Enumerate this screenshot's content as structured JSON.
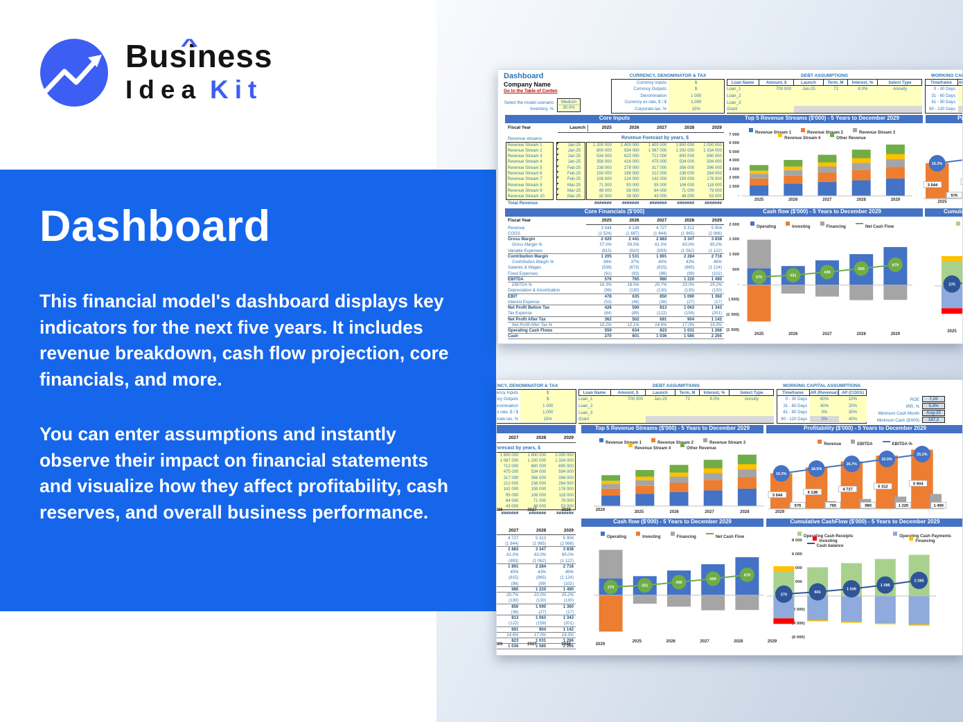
{
  "colors": {
    "accent_blue": "#1566EB",
    "logo_blue": "#3D5EF3",
    "header_bar": "#4472C4",
    "sheet_text": "#2E75B6",
    "sheet_bold": "#1F4E79",
    "link_red": "#C00000",
    "input_yellow": "#FFFFBE",
    "disabled_gray": "#D9D9D9",
    "kpi_box": "#D6DCE4",
    "series_blue": "#4472C4",
    "series_orange": "#ED7D31",
    "series_gray": "#A5A5A5",
    "series_yellow": "#FFC000",
    "series_green": "#70AD47",
    "light_green": "#A9D18E",
    "light_blue": "#8FAADC",
    "red": "#FF0000",
    "navy": "#2F5597"
  },
  "logo": {
    "part1": "Bus",
    "parti": "i",
    "part3": "ness",
    "caret": "^",
    "line2_black": "Idea",
    "line2_blue": "Kit"
  },
  "intro": {
    "title": "Dashboard",
    "para1": "This financial model's dashboard displays key indicators for the next five years. It includes revenue breakdown, cash flow projection, core financials, and more.",
    "para2": "You can enter assumptions and instantly observe their impact on financial statements and visualize how they affect profitability, cash reserves, and overall business performance."
  },
  "sheet": {
    "title": "Dashboard",
    "company": "Company Name",
    "toc": "Go to the Table of Conten",
    "scenario": {
      "label": "Select the model scenario",
      "value": "Medium",
      "inv_label": "Inventory, %",
      "inv_value": "30.0%"
    },
    "currency": {
      "title": "CURRENCY, DENOMINATOR & TAX",
      "rows": [
        [
          "Currency Inputs",
          "$"
        ],
        [
          "Currency Outputs",
          "$"
        ],
        [
          "Denomination",
          "1 000"
        ],
        [
          "Currency ex rate, $ / $",
          "1,000"
        ],
        [
          "Corporate tax, %",
          "15%"
        ]
      ]
    },
    "debt": {
      "title": "DEBT ASSUMPTIONS",
      "headers": [
        "Loan Name",
        "Amount, $",
        "Launch",
        "Term, M",
        "Interest, %",
        "Select Type"
      ],
      "rows": [
        [
          "Loan_1",
          "700 000",
          "Jan-25",
          "72",
          "8.0%",
          "Annuity"
        ],
        [
          "Loan_2",
          "",
          "",
          "",
          "",
          ""
        ],
        [
          "Loan_3",
          "",
          "",
          "",
          "",
          ""
        ],
        [
          "Grant",
          "",
          "",
          "",
          "",
          ""
        ]
      ]
    },
    "wc": {
      "title": "WORKING CAPITAL ASSUMPTIONS",
      "headers": [
        "Timeframe",
        "AR (Revenue)",
        "AP (COGS)"
      ],
      "rows": [
        [
          "0 - 30 Days",
          "60%",
          "10%"
        ],
        [
          "31 - 60 Days",
          "40%",
          "20%"
        ],
        [
          "61 - 90 Days",
          "0%",
          "30%"
        ],
        [
          "90 - 120 Days",
          "0%",
          "40%"
        ]
      ]
    },
    "kpis": [
      [
        "ROE",
        "7,20"
      ],
      [
        "IRR, %",
        "5,4%"
      ],
      [
        "Minimum Cash Month",
        "Aug-25"
      ],
      [
        "Minimum Cash ($'000)",
        "187,2"
      ]
    ],
    "core_inputs": {
      "header": "Core Inputs",
      "fiscal": "Fiscal Year",
      "launch": "Launch",
      "years": [
        "2025",
        "2026",
        "2027",
        "2028",
        "2029"
      ],
      "streams": "Revenue streams",
      "forecast": "Revenue Forecast by years, $",
      "total": "Total Revenue",
      "hash": "#######",
      "rows": [
        [
          "Revenue Stream 1",
          "Jan-25",
          "1 200 000",
          "1 400 000",
          "1 600 000",
          "1 800 000",
          "2 000 000"
        ],
        [
          "Revenue Stream 2",
          "Jan-25",
          "800 000",
          "934 000",
          "1 067 000",
          "1 200 000",
          "1 334 000"
        ],
        [
          "Revenue Stream 3",
          "Jan-25",
          "534 000",
          "623 000",
          "712 000",
          "800 000",
          "890 000"
        ],
        [
          "Revenue Stream 4",
          "Jan-25",
          "356 000",
          "416 000",
          "475 000",
          "534 000",
          "594 000"
        ],
        [
          "Revenue Stream 5",
          "Feb-25",
          "238 000",
          "278 000",
          "317 000",
          "356 000",
          "396 000"
        ],
        [
          "Revenue Stream 6",
          "Feb-25",
          "159 000",
          "186 000",
          "212 000",
          "238 000",
          "264 000"
        ],
        [
          "Revenue Stream 7",
          "Feb-25",
          "106 000",
          "124 000",
          "142 000",
          "159 000",
          "176 000"
        ],
        [
          "Revenue Stream 8",
          "Mar-25",
          "71 000",
          "83 000",
          "95 000",
          "106 000",
          "118 000"
        ],
        [
          "Revenue Stream 9",
          "Mar-25",
          "48 000",
          "56 000",
          "64 000",
          "71 000",
          "79 000"
        ],
        [
          "Revenue Stream 10",
          "Mar-25",
          "32 000",
          "38 000",
          "43 000",
          "48 000",
          "53 000"
        ]
      ]
    },
    "core_fin": {
      "header": "Core Financials ($'000)",
      "fiscal": "Fiscal Year",
      "rows": [
        {
          "l": "Revenue",
          "s": "",
          "v": [
            "3 544",
            "4 138",
            "4 727",
            "5 312",
            "5 904"
          ]
        },
        {
          "l": "COGS",
          "s": "",
          "v": [
            "(1 524)",
            "(1 697)",
            "(1 844)",
            "(1 965)",
            "(2 066)"
          ]
        },
        {
          "l": "Gross Margin",
          "s": "bt",
          "v": [
            "2 020",
            "2 441",
            "2 883",
            "3 347",
            "3 838"
          ]
        },
        {
          "l": "Gross Margin %",
          "s": "i",
          "v": [
            "57.0%",
            "59.0%",
            "61.0%",
            "63.0%",
            "65.0%"
          ]
        },
        {
          "l": "Variable Expenses",
          "s": "",
          "v": [
            "(815)",
            "(910)",
            "(993)",
            "(1 062)",
            "(1 122)"
          ]
        },
        {
          "l": "Contribution Margin",
          "s": "bt",
          "v": [
            "1 205",
            "1 531",
            "1 891",
            "2 284",
            "2 716"
          ]
        },
        {
          "l": "Contribution Margin %",
          "s": "i",
          "v": [
            "34%",
            "37%",
            "40%",
            "43%",
            "46%"
          ]
        },
        {
          "l": "Salaries & Wages",
          "s": "",
          "v": [
            "(538)",
            "(673)",
            "(815)",
            "(965)",
            "(1 124)"
          ]
        },
        {
          "l": "Fixed Expenses",
          "s": "",
          "v": [
            "(91)",
            "(93)",
            "(96)",
            "(99)",
            "(102)"
          ]
        },
        {
          "l": "EBITDA",
          "s": "bd",
          "v": [
            "576",
            "765",
            "980",
            "1 220",
            "1 490"
          ]
        },
        {
          "l": "EBITDA %",
          "s": "i",
          "v": [
            "16.3%",
            "18.5%",
            "20.7%",
            "23.0%",
            "25.2%"
          ]
        },
        {
          "l": "Depreciation & Amortization",
          "s": "",
          "v": [
            "(98)",
            "(130)",
            "(130)",
            "(130)",
            "(130)"
          ]
        },
        {
          "l": "EBIT",
          "s": "bt",
          "v": [
            "478",
            "635",
            "850",
            "1 090",
            "1 360"
          ]
        },
        {
          "l": "Interest Expense",
          "s": "",
          "v": [
            "(53)",
            "(46)",
            "(36)",
            "(27)",
            "(17)"
          ]
        },
        {
          "l": "Net Profit Before Tax",
          "s": "bt",
          "v": [
            "426",
            "590",
            "813",
            "1 063",
            "1 343"
          ]
        },
        {
          "l": "Tax Expense",
          "s": "",
          "v": [
            "(64)",
            "(89)",
            "(122)",
            "(159)",
            "(201)"
          ]
        },
        {
          "l": "Net Profit After Tax",
          "s": "bd",
          "v": [
            "362",
            "502",
            "691",
            "904",
            "1 142"
          ]
        },
        {
          "l": "Net Profit After Tax %",
          "s": "i",
          "v": [
            "10.2%",
            "12.1%",
            "14.6%",
            "17.0%",
            "19.3%"
          ]
        },
        {
          "l": "Operating Cash Flows",
          "s": "bd",
          "v": [
            "559",
            "634",
            "823",
            "1 031",
            "1 266"
          ]
        },
        {
          "l": "Cash",
          "s": "bd",
          "v": [
            "270",
            "601",
            "1 036",
            "1 585",
            "2 265"
          ]
        }
      ]
    }
  },
  "legends": {
    "top5": [
      {
        "t": "Revenue Stream 1",
        "c": "#4472C4"
      },
      {
        "t": "Revenue Stream 2",
        "c": "#ED7D31"
      },
      {
        "t": "Revenue Stream 3",
        "c": "#A5A5A5"
      },
      {
        "t": "Revenue Stream 4",
        "c": "#FFC000"
      },
      {
        "t": "Other Revenue",
        "c": "#70AD47"
      }
    ],
    "cashflow": [
      {
        "t": "Operating",
        "c": "#4472C4"
      },
      {
        "t": "Investing",
        "c": "#ED7D31"
      },
      {
        "t": "Financing",
        "c": "#A5A5A5"
      },
      {
        "t": "Net Cash Flow",
        "c": "#70AD47",
        "line": true
      }
    ],
    "profit": [
      {
        "t": "Revenue",
        "c": "#ED7D31"
      },
      {
        "t": "EBITDA",
        "c": "#A5A5A5"
      },
      {
        "t": "EBITDA %",
        "c": "#4472C4",
        "line": true
      }
    ],
    "cumulative": [
      {
        "t": "Operating Cash Receipts",
        "c": "#A9D18E"
      },
      {
        "t": "Operating Cash Payments",
        "c": "#8FAADC"
      },
      {
        "t": "Investing",
        "c": "#FF0000"
      },
      {
        "t": "Financing",
        "c": "#FFC000"
      },
      {
        "t": "Cash balance",
        "c": "#2F5597",
        "line": true
      }
    ]
  },
  "chart_data": [
    {
      "type": "bar",
      "stacked": true,
      "title": "Top 5 Revenue Streams ($'000) - 5 Years to December 2029",
      "categories": [
        "2025",
        "2026",
        "2027",
        "2028",
        "2029"
      ],
      "series": [
        {
          "name": "Revenue Stream 1",
          "color": "#4472C4",
          "values": [
            1200,
            1400,
            1600,
            1800,
            2000
          ]
        },
        {
          "name": "Revenue Stream 2",
          "color": "#ED7D31",
          "values": [
            800,
            934,
            1067,
            1200,
            1334
          ]
        },
        {
          "name": "Revenue Stream 3",
          "color": "#A5A5A5",
          "values": [
            534,
            623,
            712,
            800,
            890
          ]
        },
        {
          "name": "Revenue Stream 4",
          "color": "#FFC000",
          "values": [
            356,
            416,
            475,
            534,
            594
          ]
        },
        {
          "name": "Other Revenue",
          "color": "#70AD47",
          "values": [
            654,
            765,
            873,
            980,
            1086
          ]
        }
      ],
      "ylim": [
        0,
        7000
      ],
      "yticks": [
        {
          "v": 7000,
          "t": "7 000"
        },
        {
          "v": 6000,
          "t": "6 000"
        },
        {
          "v": 5000,
          "t": "5 000"
        },
        {
          "v": 4000,
          "t": "4 000"
        },
        {
          "v": 3000,
          "t": "3 000"
        },
        {
          "v": 2000,
          "t": "2 000"
        },
        {
          "v": 1000,
          "t": "1 000"
        },
        {
          "v": 0,
          "t": "-"
        }
      ],
      "legend_position": "top"
    },
    {
      "type": "bar",
      "title": "Profitability ($'000) - 5 Years to December 2029",
      "categories": [
        "2025",
        "2026",
        "2027",
        "2028",
        "2029"
      ],
      "series": [
        {
          "name": "Revenue",
          "color": "#ED7D31",
          "values": [
            3544,
            4138,
            4727,
            5312,
            5904
          ],
          "labels": [
            "3 544",
            "4 138",
            "4 727",
            "5 312",
            "5 904"
          ]
        },
        {
          "name": "EBITDA",
          "color": "#A5A5A5",
          "values": [
            576,
            765,
            980,
            1220,
            1490
          ],
          "labels": [
            "576",
            "765",
            "980",
            "1 220",
            "1 490"
          ]
        }
      ],
      "line_series": {
        "name": "EBITDA %",
        "color": "#4472C4",
        "values": [
          16.3,
          18.5,
          20.7,
          23.0,
          25.2
        ],
        "labels": [
          "16.3%",
          "18.5%",
          "20.7%",
          "23.0%",
          "25.2%"
        ],
        "axis_range": [
          0,
          30
        ]
      },
      "ylim": [
        0,
        6500
      ],
      "legend_position": "top"
    },
    {
      "type": "bar",
      "stacked": true,
      "title": "Cash flow ($'000) - 5 Years to December 2029",
      "categories": [
        "2025",
        "2026",
        "2027",
        "2028",
        "2029"
      ],
      "series": [
        {
          "name": "Operating",
          "color": "#4472C4",
          "values": [
            559,
            634,
            823,
            1031,
            1266
          ]
        },
        {
          "name": "Investing",
          "color": "#ED7D31",
          "values": [
            -1210,
            0,
            0,
            0,
            0
          ]
        },
        {
          "name": "Financing",
          "color": "#A5A5A5",
          "values": [
            950,
            -280,
            -380,
            -500,
            -490
          ]
        }
      ],
      "line_series": {
        "name": "Net Cash Flow",
        "color": "#70AD47",
        "values": [
          270,
          331,
          435,
          550,
          679
        ],
        "labels": [
          "270",
          "331",
          "435",
          "550",
          "679"
        ]
      },
      "ylim": [
        -1500,
        2000
      ],
      "yticks": [
        {
          "v": 2000,
          "t": "2 000"
        },
        {
          "v": 1500,
          "t": "1 500"
        },
        {
          "v": 1000,
          "t": "1 000"
        },
        {
          "v": 500,
          "t": "500"
        },
        {
          "v": 0,
          "t": "-"
        },
        {
          "v": -500,
          "t": "( 500)"
        },
        {
          "v": -1000,
          "t": "(1 000)"
        },
        {
          "v": -1500,
          "t": "(1 500)"
        }
      ],
      "legend_position": "top"
    },
    {
      "type": "bar",
      "stacked": true,
      "title": "Cumulative CashFlow ($'000) - 5 Years to December 2029",
      "categories": [
        "2025",
        "2026",
        "2027",
        "2028",
        "2029"
      ],
      "series": [
        {
          "name": "Operating Cash Receipts",
          "color": "#A9D18E",
          "values": [
            3500,
            4150,
            4750,
            5350,
            5950
          ]
        },
        {
          "name": "Operating Cash Payments",
          "color": "#8FAADC",
          "values": [
            -3230,
            -3500,
            -3700,
            -3900,
            -4100
          ]
        },
        {
          "name": "Financing",
          "color": "#FFC000",
          "values": [
            800,
            -150,
            -160,
            -170,
            -180
          ]
        },
        {
          "name": "Investing",
          "color": "#FF0000",
          "values": [
            -800,
            0,
            0,
            0,
            0
          ]
        }
      ],
      "line_series": {
        "name": "Cash balance",
        "color": "#2F5597",
        "values": [
          270,
          601,
          1036,
          1585,
          2265
        ],
        "labels": [
          "270",
          "601",
          "1 036",
          "1 585",
          "2 265"
        ]
      },
      "ylim": [
        -6000,
        8000
      ],
      "yticks": [
        {
          "v": 8000,
          "t": "8 000"
        },
        {
          "v": 6000,
          "t": "6 000"
        },
        {
          "v": 4000,
          "t": "4 000"
        },
        {
          "v": 2000,
          "t": "2 000"
        },
        {
          "v": 0,
          "t": "-"
        },
        {
          "v": -2000,
          "t": "(2 000)"
        },
        {
          "v": -4000,
          "t": "(4 000)"
        },
        {
          "v": -6000,
          "t": "(6 000)"
        }
      ],
      "legend_position": "top"
    }
  ]
}
